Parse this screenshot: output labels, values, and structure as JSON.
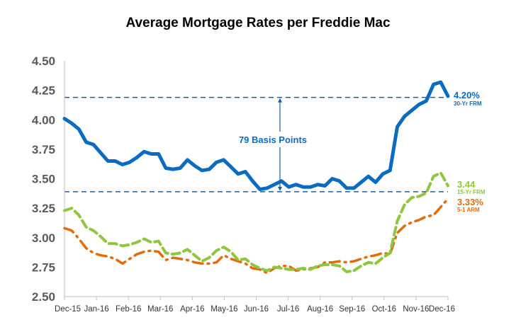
{
  "chart_data": {
    "type": "line",
    "title": "Average Mortgage Rates per Freddie Mac",
    "xlabel": "",
    "ylabel": "",
    "ylim": [
      2.5,
      4.5
    ],
    "y_ticks": [
      "4.50",
      "4.25",
      "4.00",
      "3.75",
      "3.50",
      "3.25",
      "3.00",
      "2.75",
      "2.50"
    ],
    "x_ticks": [
      "Dec-15",
      "Jan-16",
      "Feb-16",
      "Mar-16",
      "Apr-16",
      "May-16",
      "Jun-16",
      "Jul-16",
      "Aug-16",
      "Sep-16",
      "Oct-16",
      "Nov-16",
      "Dec-16"
    ],
    "grid": false,
    "colors": {
      "frm30": "#0a6bbf",
      "frm15": "#8dc63f",
      "arm51": "#e36c09",
      "reference": "#1f5f99",
      "axis": "#bfbfbf"
    },
    "series": [
      {
        "key": "frm30",
        "style": "solid",
        "values": [
          4.01,
          3.97,
          3.92,
          3.81,
          3.79,
          3.72,
          3.65,
          3.65,
          3.62,
          3.64,
          3.68,
          3.73,
          3.71,
          3.71,
          3.59,
          3.58,
          3.59,
          3.66,
          3.61,
          3.57,
          3.58,
          3.64,
          3.66,
          3.6,
          3.54,
          3.56,
          3.48,
          3.41,
          3.42,
          3.45,
          3.48,
          3.43,
          3.45,
          3.43,
          3.43,
          3.45,
          3.44,
          3.5,
          3.48,
          3.42,
          3.42,
          3.47,
          3.52,
          3.47,
          3.54,
          3.57,
          3.94,
          4.03,
          4.08,
          4.13,
          4.16,
          4.3,
          4.32,
          4.2
        ]
      },
      {
        "key": "frm15",
        "style": "dashed",
        "values": [
          3.23,
          3.25,
          3.19,
          3.09,
          3.06,
          3.01,
          2.95,
          2.95,
          2.93,
          2.94,
          2.96,
          2.99,
          2.96,
          2.97,
          2.87,
          2.86,
          2.87,
          2.9,
          2.85,
          2.8,
          2.83,
          2.89,
          2.92,
          2.88,
          2.81,
          2.82,
          2.77,
          2.74,
          2.72,
          2.75,
          2.74,
          2.73,
          2.73,
          2.74,
          2.73,
          2.76,
          2.77,
          2.77,
          2.76,
          2.71,
          2.72,
          2.76,
          2.79,
          2.78,
          2.83,
          2.87,
          3.14,
          3.28,
          3.34,
          3.35,
          3.38,
          3.52,
          3.55,
          3.44
        ]
      },
      {
        "key": "arm51",
        "style": "dashdot",
        "values": [
          3.08,
          3.06,
          2.99,
          2.91,
          2.87,
          2.85,
          2.84,
          2.82,
          2.78,
          2.82,
          2.86,
          2.88,
          2.89,
          2.88,
          2.81,
          2.83,
          2.82,
          2.81,
          2.79,
          2.78,
          2.78,
          2.79,
          2.85,
          2.82,
          2.8,
          2.78,
          2.74,
          2.73,
          2.7,
          2.74,
          2.76,
          2.76,
          2.72,
          2.73,
          2.74,
          2.75,
          2.79,
          2.79,
          2.8,
          2.79,
          2.8,
          2.82,
          2.84,
          2.85,
          2.87,
          2.86,
          3.04,
          3.1,
          3.13,
          3.15,
          3.18,
          3.19,
          3.26,
          3.33
        ]
      }
    ],
    "reference_lines": [
      4.19,
      3.39
    ],
    "annotations": {
      "basis_points": "79 Basis Points",
      "frm30_value": "4.20%",
      "frm30_name": "30-Yr FRM",
      "frm15_value": "3.44",
      "frm15_name": "15-Yr FRM",
      "arm51_value": "3.33%",
      "arm51_name": "5-1 ARM"
    }
  }
}
